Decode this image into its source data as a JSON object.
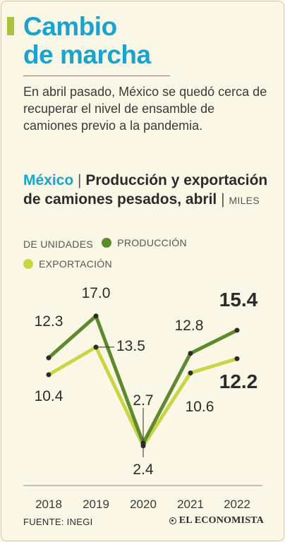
{
  "headline": {
    "line1": "Cambio",
    "line2": "de marcha"
  },
  "intro": "En abril pasado, México se quedó cerca de recuperar el nivel de ensamble de camiones previo a la pandemia.",
  "chart_title": {
    "country": "México",
    "separator": "|",
    "title_part1": "Producción",
    "title_part2": "y exportación de camiones pesados, abril",
    "units_line1": "MILES",
    "units_line2": "DE UNIDADES"
  },
  "legend": {
    "production": "PRODUCCIÓN",
    "export": "EXPORTACIÓN"
  },
  "colors": {
    "production": "#5e8a2e",
    "export": "#c8d645",
    "accent": "#18a4cc",
    "bar": "#a8c43a"
  },
  "chart_data": {
    "type": "line",
    "x": [
      "2018",
      "2019",
      "2020",
      "2021",
      "2022"
    ],
    "series": [
      {
        "name": "PRODUCCIÓN",
        "values": [
          12.3,
          17.0,
          2.7,
          12.8,
          15.4
        ],
        "labels": [
          "12.3",
          "17.0",
          "2.7",
          "12.8",
          "15.4"
        ]
      },
      {
        "name": "EXPORTACIÓN",
        "values": [
          10.4,
          13.5,
          2.4,
          10.6,
          12.2
        ],
        "labels": [
          "10.4",
          "13.5",
          "2.4",
          "10.6",
          "12.2"
        ]
      }
    ],
    "ylim": [
      0,
      20
    ],
    "grid": false
  },
  "footer": {
    "source": "FUENTE: INEGI",
    "brand": "EL ECONOMISTA"
  }
}
